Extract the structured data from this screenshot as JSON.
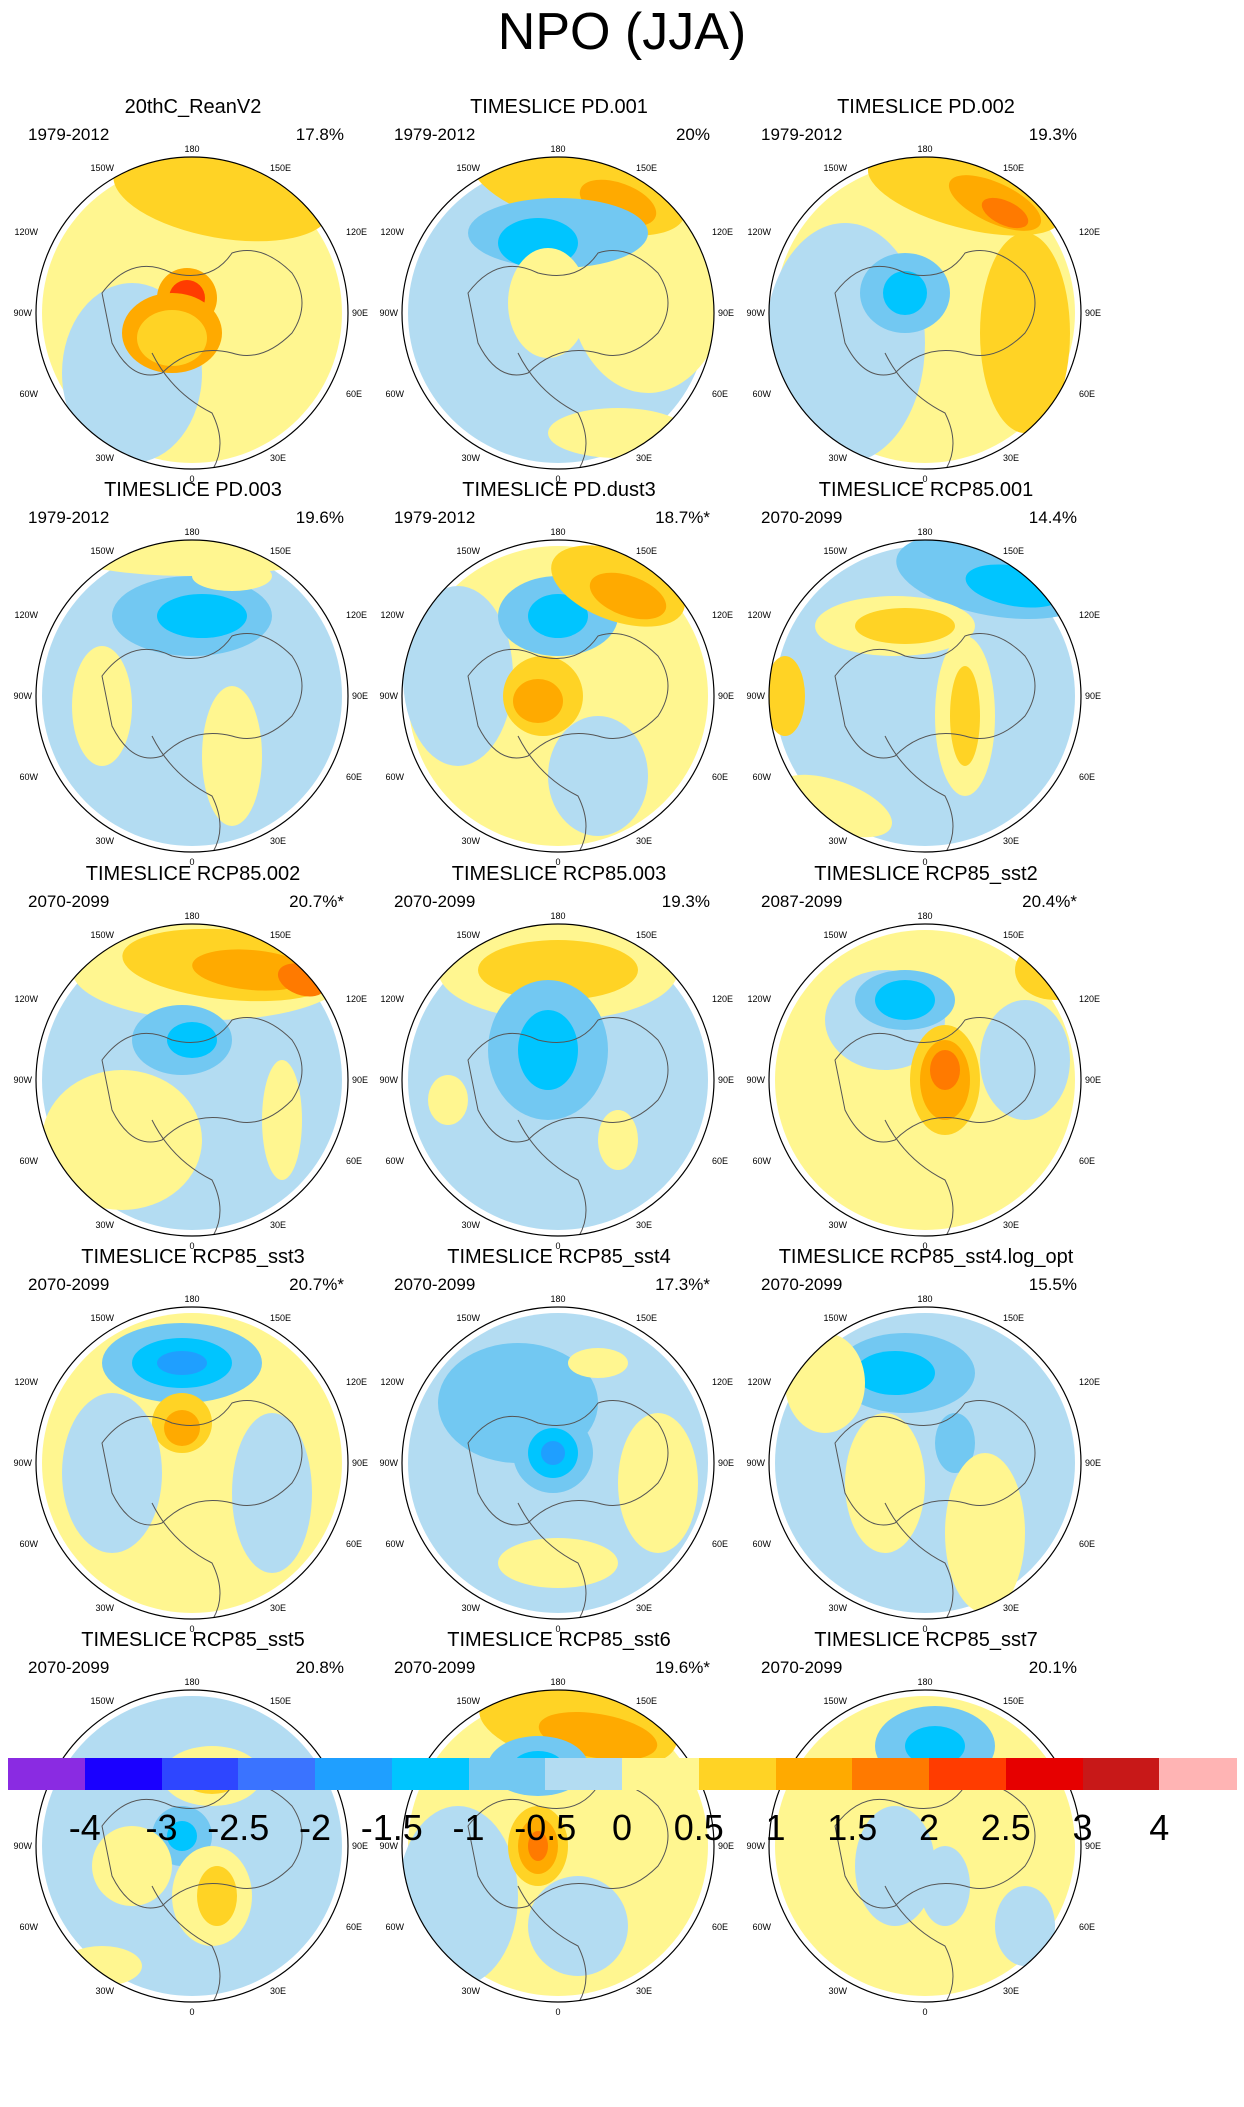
{
  "title": "NPO (JJA)",
  "colors": {
    "background": "#ffffff",
    "coast": "#555555",
    "border": "#000000",
    "colorbar": [
      "#8a2be2",
      "#1a00ff",
      "#2e46ff",
      "#3a73ff",
      "#1f9fff",
      "#00c5ff",
      "#72c8f2",
      "#b3dcf2",
      "#fff690",
      "#ffd325",
      "#ffaa00",
      "#ff7a00",
      "#ff3c00",
      "#e60000",
      "#c81818",
      "#ffb4b4"
    ]
  },
  "map_labels": {
    "top": "180",
    "bottom": "0",
    "left_upper": "120W",
    "left_mid": "90W",
    "left_lower": "60W",
    "right_upper": "120E",
    "right_mid": "90E",
    "right_lower": "60E",
    "top_left": "150W",
    "top_right": "150E",
    "bottom_left": "30W",
    "bottom_right": "30E"
  },
  "panels": [
    {
      "title": "20thC_ReanV2",
      "years": "1979-2012",
      "pct": "17.8%"
    },
    {
      "title": "TIMESLICE PD.001",
      "years": "1979-2012",
      "pct": "20%"
    },
    {
      "title": "TIMESLICE PD.002",
      "years": "1979-2012",
      "pct": "19.3%"
    },
    {
      "title": "TIMESLICE PD.003",
      "years": "1979-2012",
      "pct": "19.6%"
    },
    {
      "title": "TIMESLICE PD.dust3",
      "years": "1979-2012",
      "pct": "18.7%*"
    },
    {
      "title": "TIMESLICE RCP85.001",
      "years": "2070-2099",
      "pct": "14.4%"
    },
    {
      "title": "TIMESLICE RCP85.002",
      "years": "2070-2099",
      "pct": "20.7%*"
    },
    {
      "title": "TIMESLICE RCP85.003",
      "years": "2070-2099",
      "pct": "19.3%"
    },
    {
      "title": "TIMESLICE RCP85_sst2",
      "years": "2087-2099",
      "pct": "20.4%*"
    },
    {
      "title": "TIMESLICE RCP85_sst3",
      "years": "2070-2099",
      "pct": "20.7%*"
    },
    {
      "title": "TIMESLICE RCP85_sst4",
      "years": "2070-2099",
      "pct": "17.3%*"
    },
    {
      "title": "TIMESLICE RCP85_sst4.log_opt",
      "years": "2070-2099",
      "pct": "15.5%"
    },
    {
      "title": "TIMESLICE RCP85_sst5",
      "years": "2070-2099",
      "pct": "20.8%"
    },
    {
      "title": "TIMESLICE RCP85_sst6",
      "years": "2070-2099",
      "pct": "19.6%*"
    },
    {
      "title": "TIMESLICE RCP85_sst7",
      "years": "2070-2099",
      "pct": "20.1%"
    }
  ],
  "colorbar_labels": [
    "-4",
    "-3",
    "-2.5",
    "-2",
    "-1.5",
    "-1",
    "-0.5",
    "0",
    "0.5",
    "1",
    "1.5",
    "2",
    "2.5",
    "3",
    "4"
  ]
}
